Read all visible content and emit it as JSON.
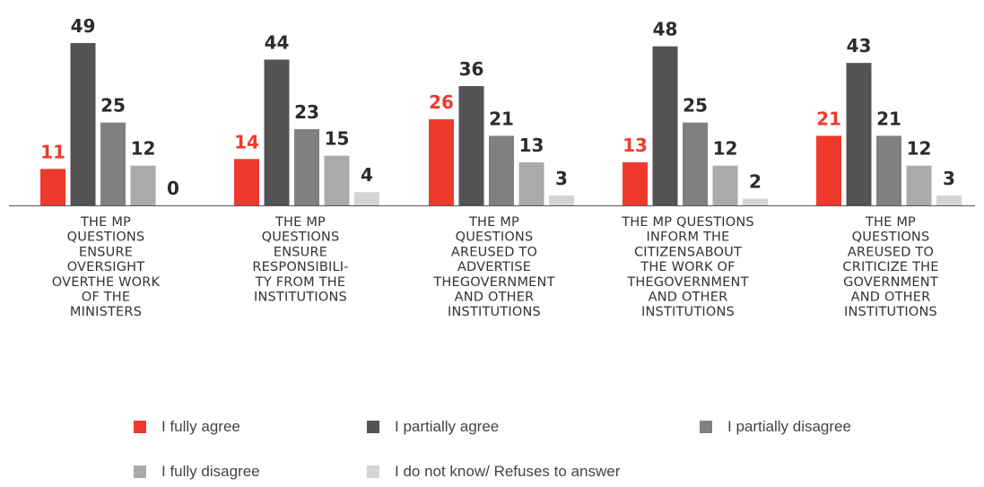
{
  "chart_data": {
    "type": "bar",
    "categories": [
      [
        "THE MP",
        "QUESTIONS",
        "ENSURE",
        "OVERSIGHT",
        "OVERTHE WORK",
        "OF THE",
        "MINISTERS"
      ],
      [
        "THE MP",
        "QUESTIONS",
        "ENSURE",
        "RESPONSIBILI-",
        "TY FROM THE",
        "INSTITUTIONS"
      ],
      [
        "THE MP",
        "QUESTIONS",
        "AREUSED TO",
        "ADVERTISE",
        "THEGOVERNMENT",
        "AND OTHER",
        "INSTITUTIONS"
      ],
      [
        "THE MP QUESTIONS",
        "INFORM THE",
        "CITIZENSABOUT",
        "THE WORK OF",
        "THEGOVERNMENT",
        "AND OTHER",
        "INSTITUTIONS"
      ],
      [
        "THE MP",
        "QUESTIONS",
        "AREUSED TO",
        "CRITICIZE THE",
        "GOVERNMENT",
        "AND OTHER",
        "INSTITUTIONS"
      ]
    ],
    "series": [
      {
        "name": "I fully agree",
        "color": "#ee3a2c",
        "values": [
          11,
          14,
          26,
          13,
          21
        ]
      },
      {
        "name": "I partially agree",
        "color": "#535355",
        "values": [
          49,
          44,
          36,
          48,
          43
        ]
      },
      {
        "name": "I partially disagree",
        "color": "#808083",
        "values": [
          25,
          23,
          21,
          25,
          21
        ]
      },
      {
        "name": "I fully disagree",
        "color": "#aaaaac",
        "values": [
          12,
          15,
          13,
          12,
          12
        ]
      },
      {
        "name": "I do not know/ Refuses to answer",
        "color": "#d4d4d6",
        "values": [
          0,
          4,
          3,
          2,
          3
        ]
      }
    ],
    "highlight_label_color": "#ee3a2c",
    "label_color": "#2b2b2b",
    "legend_position": "bottom",
    "ylim": [
      0,
      49
    ],
    "grid": false
  }
}
